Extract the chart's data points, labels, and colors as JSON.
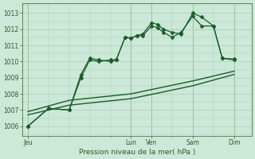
{
  "background_color": "#cce8d8",
  "plot_bg_color": "#cce8d8",
  "grid_color": "#aaccb8",
  "line_color": "#1a5c28",
  "title": "Pression niveau de la mer( hPa )",
  "ylim": [
    1005.4,
    1013.6
  ],
  "yticks": [
    1006,
    1007,
    1008,
    1009,
    1010,
    1011,
    1012,
    1013
  ],
  "xtick_labels": [
    "Jeu",
    "Lun",
    "Ven",
    "Sam",
    "Dim"
  ],
  "xtick_pos": [
    0,
    35,
    42,
    56,
    70
  ],
  "xlim": [
    -2,
    76
  ],
  "series": [
    {
      "x": [
        0,
        7,
        14,
        18,
        21,
        24,
        28,
        30,
        33,
        35,
        37,
        39,
        42,
        44,
        46,
        49,
        52,
        56,
        59,
        63,
        66,
        70
      ],
      "y": [
        1006.0,
        1007.1,
        1007.0,
        1009.2,
        1010.2,
        1010.1,
        1010.0,
        1010.1,
        1011.5,
        1011.45,
        1011.6,
        1011.7,
        1012.4,
        1012.3,
        1012.0,
        1011.8,
        1011.7,
        1013.0,
        1012.75,
        1012.2,
        1010.2,
        1010.15
      ],
      "marker": "D",
      "ms": 2.5,
      "lw": 0.9
    },
    {
      "x": [
        0,
        7,
        14,
        18,
        21,
        24,
        28,
        30,
        33,
        35,
        37,
        39,
        42,
        44,
        46,
        49,
        52,
        56,
        59,
        63,
        66,
        70
      ],
      "y": [
        1006.0,
        1007.1,
        1007.0,
        1009.0,
        1010.1,
        1010.0,
        1010.1,
        1010.1,
        1011.5,
        1011.45,
        1011.6,
        1011.6,
        1012.2,
        1012.1,
        1011.8,
        1011.5,
        1011.8,
        1012.8,
        1012.2,
        1012.2,
        1010.2,
        1010.1
      ],
      "marker": "D",
      "ms": 2.5,
      "lw": 0.9
    },
    {
      "x": [
        0,
        14,
        35,
        56,
        70
      ],
      "y": [
        1006.9,
        1007.6,
        1008.0,
        1008.8,
        1009.4
      ],
      "marker": null,
      "ms": 0,
      "lw": 1.0
    },
    {
      "x": [
        0,
        14,
        35,
        56,
        70
      ],
      "y": [
        1006.7,
        1007.3,
        1007.7,
        1008.5,
        1009.2
      ],
      "marker": null,
      "ms": 0,
      "lw": 1.0
    }
  ]
}
